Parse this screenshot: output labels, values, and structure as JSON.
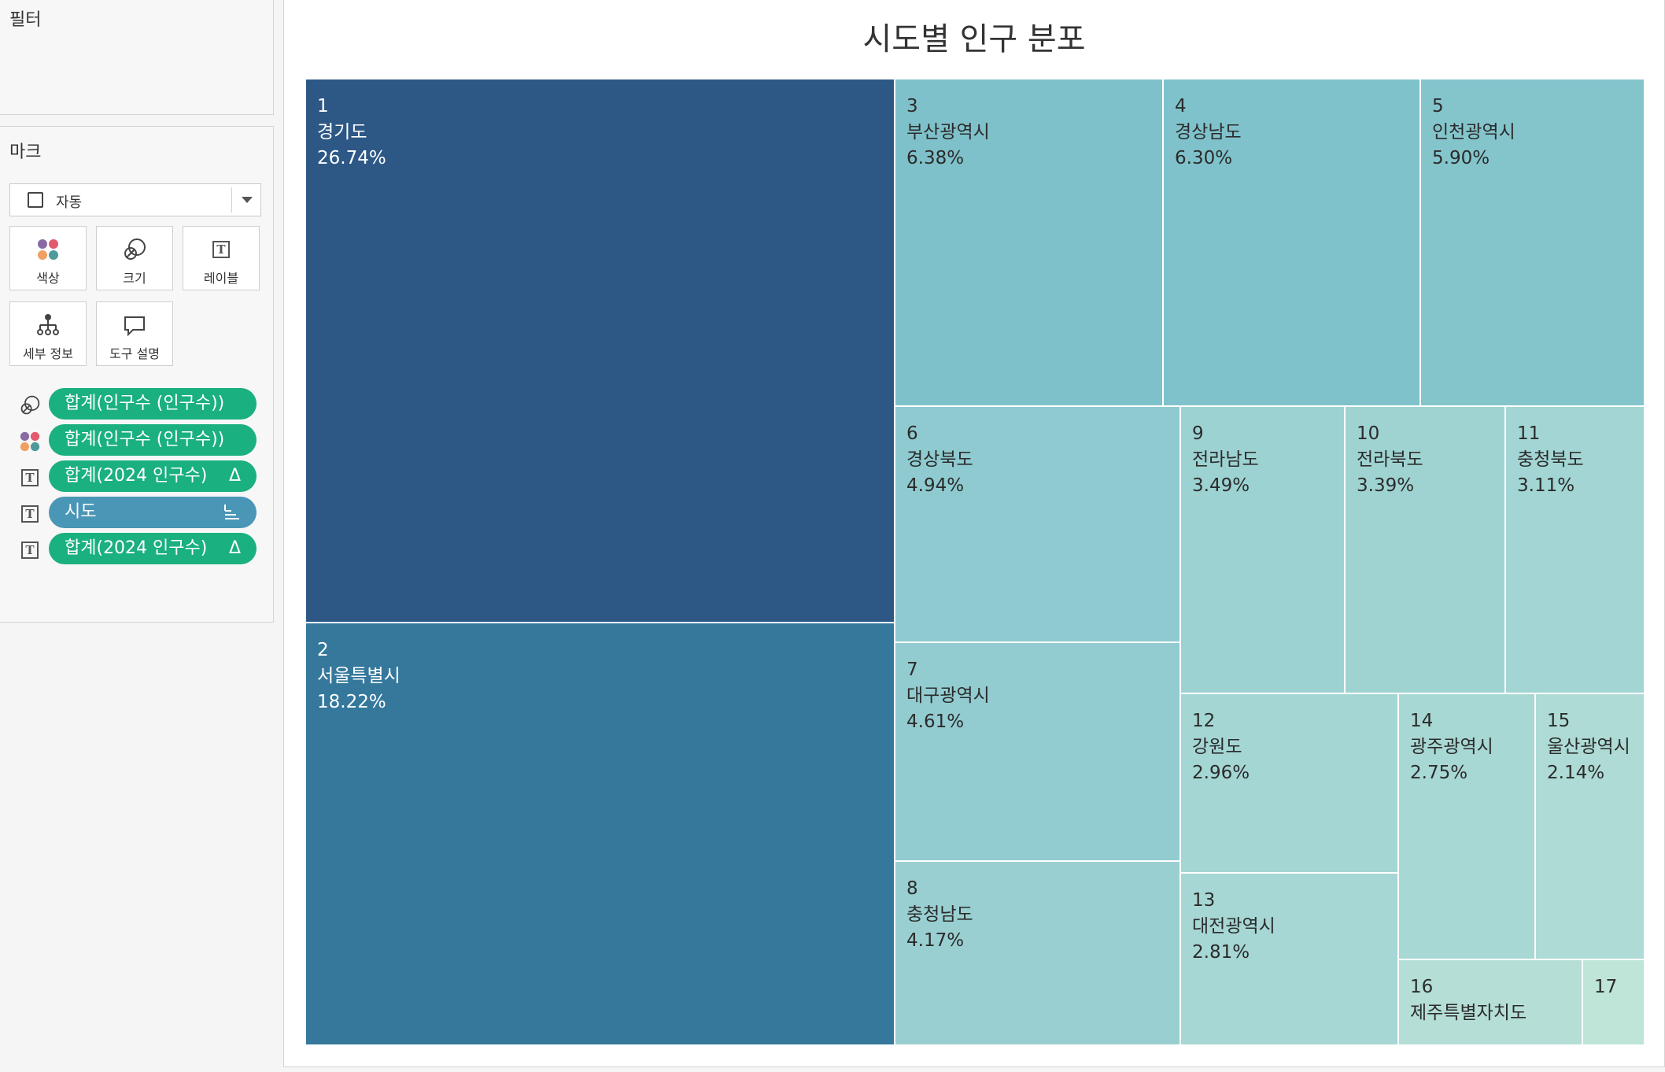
{
  "filters": {
    "title": "필터"
  },
  "marks": {
    "title": "마크",
    "mark_type": "자동",
    "cards": [
      {
        "label": "색상",
        "icon": "color-icon"
      },
      {
        "label": "크기",
        "icon": "size-icon"
      },
      {
        "label": "레이블",
        "icon": "label-icon"
      },
      {
        "label": "세부 정보",
        "icon": "detail-icon"
      },
      {
        "label": "도구 설명",
        "icon": "tooltip-icon"
      }
    ],
    "pills": [
      {
        "icon": "size-icon",
        "text": "합계(인구수 (인구수))",
        "tail": "",
        "color": "#1ab07f"
      },
      {
        "icon": "color-icon",
        "text": "합계(인구수 (인구수))",
        "tail": "",
        "color": "#1ab07f"
      },
      {
        "icon": "label-icon",
        "text": "합계(2024 인구수)",
        "tail": "Δ",
        "color": "#1ab07f"
      },
      {
        "icon": "label-icon",
        "text": "시도",
        "tail": "sort",
        "color": "#4a96b7"
      },
      {
        "icon": "label-icon",
        "text": "합계(2024 인구수)",
        "tail": "Δ",
        "color": "#1ab07f"
      }
    ]
  },
  "chart_data": {
    "type": "treemap",
    "title": "시도별 인구 분포",
    "items": [
      {
        "rank": "1",
        "name": "경기도",
        "pct": "26.74%",
        "value": 26.74,
        "color": "#2d5886"
      },
      {
        "rank": "2",
        "name": "서울특별시",
        "pct": "18.22%",
        "value": 18.22,
        "color": "#35789c"
      },
      {
        "rank": "3",
        "name": "부산광역시",
        "pct": "6.38%",
        "value": 6.38,
        "color": "#7fc1ca"
      },
      {
        "rank": "4",
        "name": "경상남도",
        "pct": "6.30%",
        "value": 6.3,
        "color": "#7fc2cb"
      },
      {
        "rank": "5",
        "name": "인천광역시",
        "pct": "5.90%",
        "value": 5.9,
        "color": "#84c5cc"
      },
      {
        "rank": "6",
        "name": "경상북도",
        "pct": "4.94%",
        "value": 4.94,
        "color": "#8ecacf"
      },
      {
        "rank": "7",
        "name": "대구광역시",
        "pct": "4.61%",
        "value": 4.61,
        "color": "#92ccd0"
      },
      {
        "rank": "8",
        "name": "충청남도",
        "pct": "4.17%",
        "value": 4.17,
        "color": "#99cfd1"
      },
      {
        "rank": "9",
        "name": "전라남도",
        "pct": "3.49%",
        "value": 3.49,
        "color": "#9dd2d2"
      },
      {
        "rank": "10",
        "name": "전라북도",
        "pct": "3.39%",
        "value": 3.39,
        "color": "#9fd3d2"
      },
      {
        "rank": "11",
        "name": "충청북도",
        "pct": "3.11%",
        "value": 3.11,
        "color": "#a2d5d3"
      },
      {
        "rank": "12",
        "name": "강원도",
        "pct": "2.96%",
        "value": 2.96,
        "color": "#a4d6d3"
      },
      {
        "rank": "13",
        "name": "대전광역시",
        "pct": "2.81%",
        "value": 2.81,
        "color": "#a6d7d4"
      },
      {
        "rank": "14",
        "name": "광주광역시",
        "pct": "2.75%",
        "value": 2.75,
        "color": "#a8d8d4"
      },
      {
        "rank": "15",
        "name": "울산광역시",
        "pct": "2.14%",
        "value": 2.14,
        "color": "#aedbd5"
      },
      {
        "rank": "16",
        "name": "제주특별자치도",
        "pct": "",
        "value": 1.32,
        "color": "#b4ded6"
      },
      {
        "rank": "17",
        "name": "",
        "pct": "",
        "value": 0.6,
        "color": "#bfe4d8"
      }
    ]
  }
}
